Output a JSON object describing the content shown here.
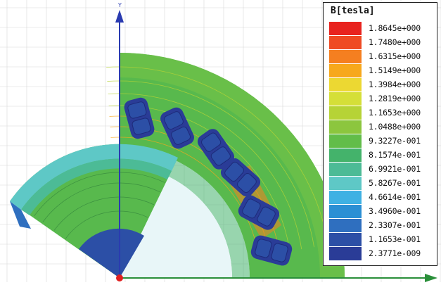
{
  "viewport": {
    "axis_label_y": "Y",
    "axis_color": "#2a3bb0",
    "origin_color": "#e02020",
    "grid_color": "#d8d8d8"
  },
  "legend": {
    "title": "B[tesla]",
    "entries": [
      {
        "label": "1.8645e+000",
        "color": "#e8231f"
      },
      {
        "label": "1.7480e+000",
        "color": "#ef4a24"
      },
      {
        "label": "1.6315e+000",
        "color": "#f57f20"
      },
      {
        "label": "1.5149e+000",
        "color": "#f7a81c"
      },
      {
        "label": "1.3984e+000",
        "color": "#ecd832"
      },
      {
        "label": "1.2819e+000",
        "color": "#d5df38"
      },
      {
        "label": "1.1653e+000",
        "color": "#b6d336"
      },
      {
        "label": "1.0488e+000",
        "color": "#8cc63e"
      },
      {
        "label": "9.3227e-001",
        "color": "#62bd49"
      },
      {
        "label": "8.1574e-001",
        "color": "#44b36b"
      },
      {
        "label": "6.9921e-001",
        "color": "#4cbb96"
      },
      {
        "label": "5.8267e-001",
        "color": "#5ec8c6"
      },
      {
        "label": "4.6614e-001",
        "color": "#3fb1e3"
      },
      {
        "label": "3.4960e-001",
        "color": "#2b8fd4"
      },
      {
        "label": "2.3307e-001",
        "color": "#2f6fbf"
      },
      {
        "label": "1.1653e-001",
        "color": "#2c4fa6"
      },
      {
        "label": "2.3771e-009",
        "color": "#2a3c97"
      }
    ]
  }
}
